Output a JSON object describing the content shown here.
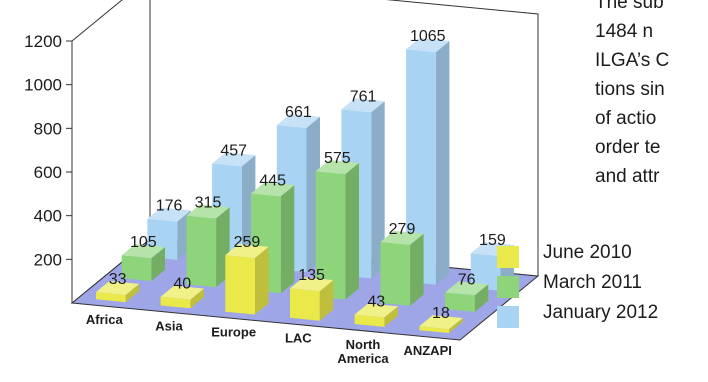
{
  "paragraph": {
    "lines": [
      "The sub",
      "1484 n",
      "ILGA’s C",
      "tions sin",
      "of actio",
      "order te",
      "and attr"
    ]
  },
  "colors": {
    "June 2010": "#e9e94a",
    "March 2011": "#8ed47a",
    "January 2012": "#a9d3f3",
    "floor": "#9ea6e8"
  },
  "chart_data": {
    "type": "bar",
    "3d": true,
    "categories": [
      "Africa",
      "Asia",
      "Europe",
      "LAC",
      "North America",
      "ANZAPI"
    ],
    "series": [
      {
        "name": "June 2010",
        "values": [
          33,
          40,
          259,
          135,
          43,
          18
        ]
      },
      {
        "name": "March 2011",
        "values": [
          105,
          315,
          445,
          575,
          279,
          76
        ]
      },
      {
        "name": "January 2012",
        "values": [
          176,
          457,
          661,
          761,
          1065,
          159
        ]
      }
    ],
    "yticks": [
      200,
      400,
      600,
      800,
      1000,
      1200
    ],
    "ylim": [
      0,
      1200
    ],
    "legend_position": "right"
  }
}
